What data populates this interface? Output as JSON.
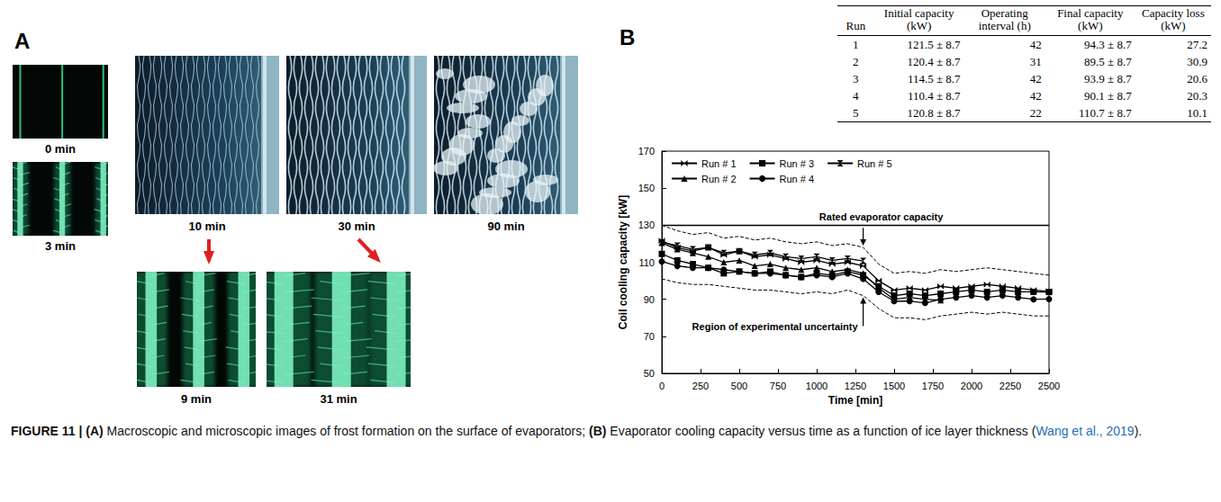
{
  "panel_a": {
    "letter": "A",
    "images": [
      {
        "caption": "0 min"
      },
      {
        "caption": "3 min"
      },
      {
        "caption": "10 min"
      },
      {
        "caption": "30 min"
      },
      {
        "caption": "90 min"
      },
      {
        "caption": "9 min"
      },
      {
        "caption": "31 min"
      }
    ]
  },
  "panel_b": {
    "letter": "B",
    "table": {
      "columns": [
        "Run",
        "Initial capacity (kW)",
        "Operating interval (h)",
        "Final capacity (kW)",
        "Capacity loss (kW)"
      ],
      "rows": [
        [
          1,
          "121.5 ± 8.7",
          42,
          "94.3 ± 8.7",
          27.2
        ],
        [
          2,
          "120.4 ± 8.7",
          31,
          "89.5 ± 8.7",
          30.9
        ],
        [
          3,
          "114.5 ± 8.7",
          42,
          "93.9 ± 8.7",
          20.6
        ],
        [
          4,
          "110.4 ± 8.7",
          42,
          "90.1 ± 8.7",
          20.3
        ],
        [
          5,
          "120.8 ± 8.7",
          22,
          "110.7 ± 8.7",
          10.1
        ]
      ]
    }
  },
  "chart_data": {
    "type": "line",
    "x_label": "Time [min]",
    "y_label": "Coil cooling capacity [kW]",
    "x": [
      0,
      100,
      200,
      300,
      400,
      500,
      600,
      700,
      800,
      900,
      1000,
      1100,
      1200,
      1300,
      1400,
      1500,
      1600,
      1700,
      1800,
      1900,
      2000,
      2100,
      2200,
      2300,
      2400,
      2500
    ],
    "series": [
      {
        "name": "Run # 1",
        "color": "#000000",
        "marker": "bowtie",
        "line_style": "solid",
        "values": [
          121.5,
          118,
          116,
          118,
          114,
          116,
          113,
          114,
          112,
          110,
          111,
          109,
          110,
          108,
          100,
          95,
          96,
          95,
          97,
          96,
          97,
          98,
          97,
          96,
          95,
          94.3
        ]
      },
      {
        "name": "Run # 2",
        "color": "#000000",
        "marker": "triangle",
        "line_style": "solid",
        "values": [
          120.4,
          117,
          115,
          113,
          110,
          111,
          108,
          109,
          107,
          106,
          107,
          105,
          106,
          104,
          96,
          90,
          91,
          90,
          89.5,
          null,
          null,
          null,
          null,
          null,
          null,
          null
        ]
      },
      {
        "name": "Run # 3",
        "color": "#000000",
        "marker": "square",
        "line_style": "solid",
        "values": [
          114.5,
          111,
          109,
          107,
          104,
          105,
          104,
          105,
          103,
          102,
          104,
          103,
          105,
          103,
          97,
          92,
          93,
          92,
          93,
          94,
          95,
          94,
          95,
          94,
          94,
          93.9
        ]
      },
      {
        "name": "Run # 4",
        "color": "#000000",
        "marker": "circle",
        "line_style": "solid",
        "values": [
          110.4,
          108,
          107,
          107,
          106,
          105,
          104,
          104,
          103,
          102,
          103,
          102,
          104,
          101,
          94,
          89,
          89,
          88,
          90,
          91,
          92,
          91,
          92,
          91,
          90,
          90.1
        ]
      },
      {
        "name": "Run # 5",
        "color": "#000000",
        "marker": "hourglass",
        "line_style": "solid",
        "values": [
          120.8,
          119,
          117,
          118,
          115,
          116,
          114,
          115,
          113,
          112,
          113,
          111,
          112,
          110.7,
          null,
          null,
          null,
          null,
          null,
          null,
          null,
          null,
          null,
          null,
          null,
          null
        ]
      }
    ],
    "rated_capacity": {
      "label": "Rated evaporator capacity",
      "value": 130
    },
    "uncertainty_band": {
      "label": "Region of experimental uncertainty",
      "upper": [
        130,
        127,
        125,
        126,
        123,
        124,
        122,
        123,
        121,
        120,
        121,
        119,
        120,
        118,
        109,
        104,
        105,
        104,
        106,
        105,
        106,
        107,
        106,
        105,
        104,
        103
      ],
      "lower": [
        101,
        99,
        98,
        98,
        97,
        96,
        95,
        95,
        94,
        93,
        94,
        93,
        95,
        92,
        85,
        80,
        80,
        79,
        81,
        82,
        83,
        82,
        83,
        82,
        81,
        81
      ]
    },
    "xlim": [
      0,
      2500
    ],
    "xticks": [
      0,
      250,
      500,
      750,
      1000,
      1250,
      1500,
      1750,
      2000,
      2250,
      2500
    ],
    "ylim": [
      50,
      170
    ],
    "yticks": [
      50,
      70,
      90,
      110,
      130,
      150,
      170
    ],
    "grid": false,
    "legend": "upper left"
  },
  "caption": {
    "label": "FIGURE 11 |",
    "parts": [
      {
        "text": "(A)",
        "bold": true
      },
      {
        "text": " Macroscopic and microscopic images of frost formation on the surface of evaporators; "
      },
      {
        "text": "(B)",
        "bold": true
      },
      {
        "text": " Evaporator cooling capacity versus time as a function of ice layer thickness ("
      },
      {
        "text": "Wang et al., 2019",
        "link": true
      },
      {
        "text": ")."
      }
    ]
  }
}
